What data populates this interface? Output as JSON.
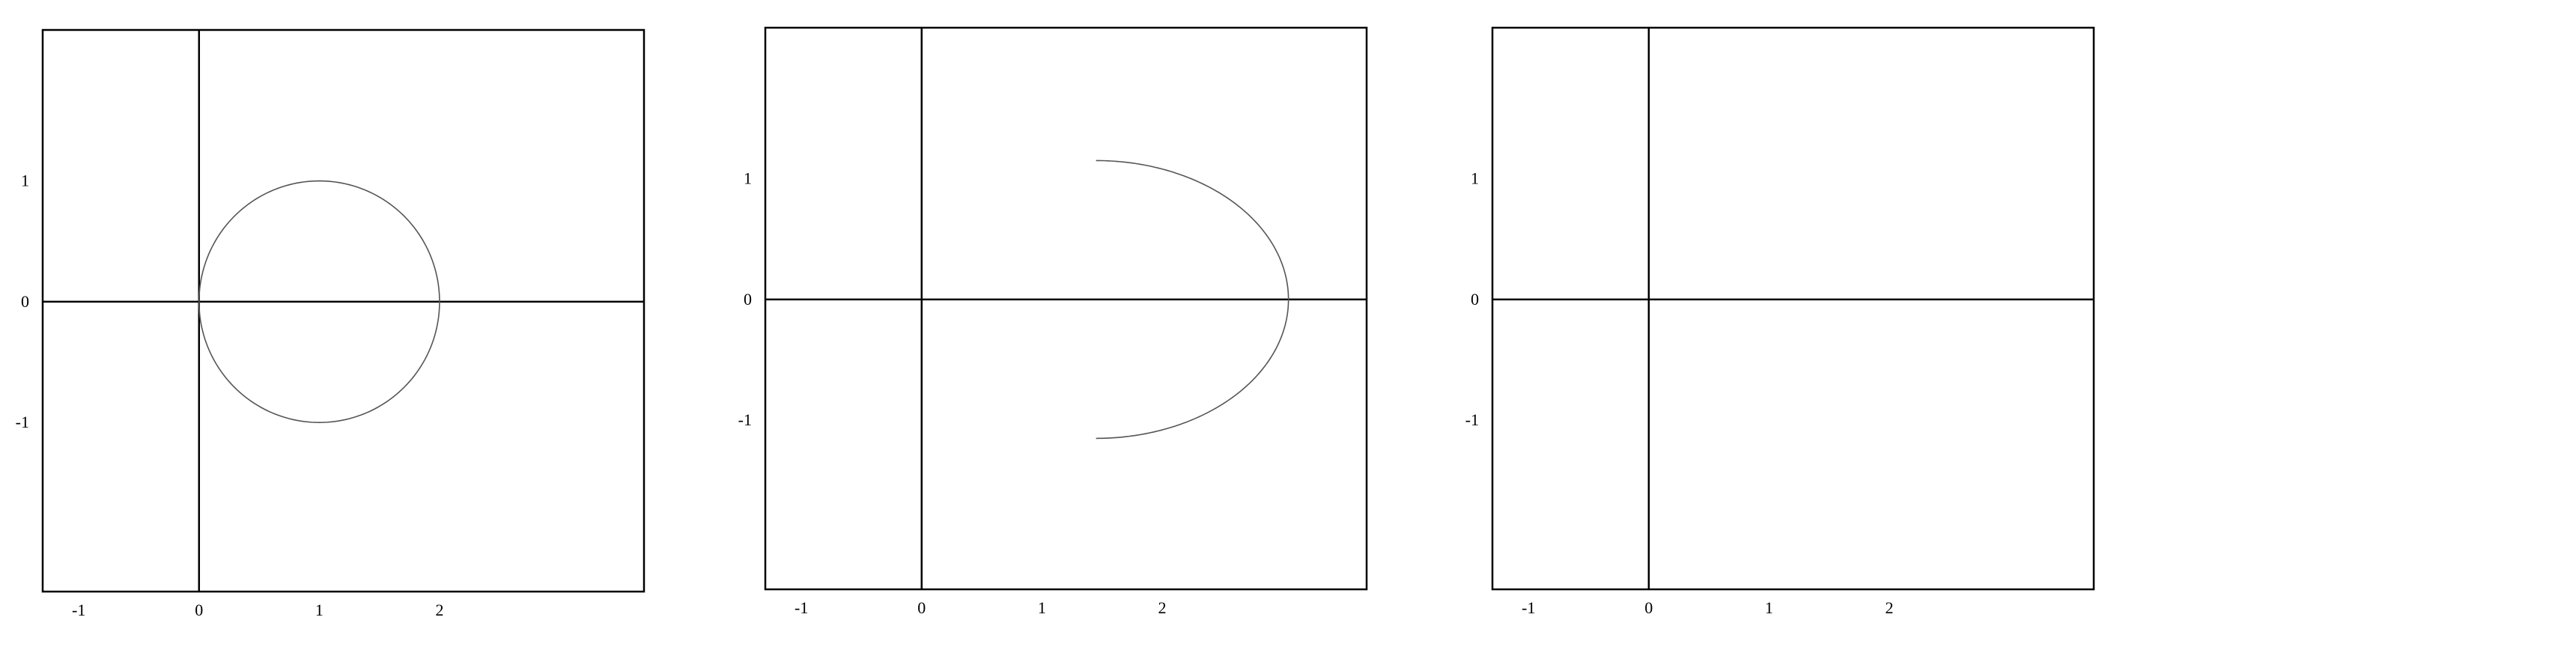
{
  "chart_data": [
    {
      "type": "line",
      "title": "",
      "xlabel": "",
      "ylabel": "",
      "x_ticks": [
        "-1",
        "0",
        "1",
        "2"
      ],
      "y_ticks": [
        "1",
        "0",
        "-1"
      ],
      "xlim": [
        -1.3,
        3.7
      ],
      "ylim": [
        -2.4,
        2.25
      ],
      "grid": false,
      "series": [
        {
          "name": "",
          "kind": "circle",
          "center": [
            1,
            0
          ],
          "radius": 1,
          "color": "#555555"
        }
      ]
    },
    {
      "type": "line",
      "title": "",
      "xlabel": "",
      "ylabel": "",
      "x_ticks": [
        "-1",
        "0",
        "1",
        "2"
      ],
      "y_ticks": [
        "1",
        "0",
        "-1"
      ],
      "xlim": [
        -1.3,
        3.7
      ],
      "ylim": [
        -2.4,
        2.25
      ],
      "grid": false,
      "series": [
        {
          "name": "",
          "kind": "half-ellipse",
          "center": [
            1.45,
            0
          ],
          "rx": 1.6,
          "ry": 1.15,
          "color": "#555555"
        }
      ]
    },
    {
      "type": "line",
      "title": "",
      "xlabel": "",
      "ylabel": "",
      "x_ticks": [
        "-1",
        "0",
        "1",
        "2"
      ],
      "y_ticks": [
        "1",
        "0",
        "-1"
      ],
      "xlim": [
        -1.3,
        3.7
      ],
      "ylim": [
        -2.4,
        2.25
      ],
      "grid": false,
      "series": []
    }
  ]
}
